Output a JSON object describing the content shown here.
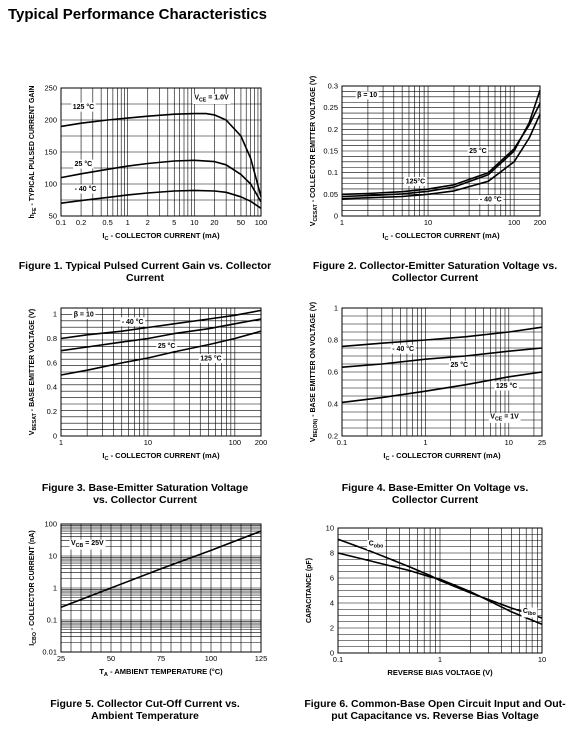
{
  "page_title": "Typical Performance Characteristics",
  "figures": [
    {
      "caption_lines": [
        "Figure 1. Typical Pulsed Current Gain vs. Collector",
        "Current"
      ]
    },
    {
      "caption_lines": [
        "Figure 2. Collector-Emitter Saturation Voltage vs.",
        "Collector Current"
      ]
    },
    {
      "caption_lines": [
        "Figure 3. Base-Emitter Saturation Voltage",
        "vs. Collector Current"
      ]
    },
    {
      "caption_lines": [
        "Figure 4. Base-Emitter On Voltage vs.",
        "Collector Current"
      ]
    },
    {
      "caption_lines": [
        "Figure 5. Collector Cut-Off Current vs.",
        "Ambient Temperature"
      ]
    },
    {
      "caption_lines": [
        "Figure 6. Common-Base Open Circuit Input and Out-",
        "put Capacitance vs. Reverse Bias Voltage"
      ]
    }
  ],
  "chart_data": [
    {
      "type": "line",
      "xscale": "log",
      "xlim": [
        0.1,
        100
      ],
      "xticks": [
        "0.1",
        "0.2",
        "0.5",
        "1",
        "2",
        "5",
        "10",
        "20",
        "50",
        "100"
      ],
      "yscale": "linear",
      "ylim": [
        50,
        250
      ],
      "yticks": [
        "50",
        "100",
        "150",
        "200",
        "250"
      ],
      "xlabel": "I C - COLLECTOR CURRENT (mA)",
      "ylabel": "h FE - TYPICAL PULSED CURRENT GAIN",
      "annotations": [
        {
          "text": "V CE = 1.0V",
          "x": 10,
          "y": 232
        },
        {
          "text": "125 °C",
          "x": 0.15,
          "y": 217
        },
        {
          "text": "25 °C",
          "x": 0.16,
          "y": 128
        },
        {
          "text": "- 40 °C",
          "x": 0.16,
          "y": 89
        }
      ],
      "series": [
        {
          "label": "125 °C",
          "x": [
            0.1,
            0.2,
            0.5,
            1,
            2,
            5,
            10,
            15,
            20,
            30,
            50,
            70,
            100
          ],
          "y": [
            190,
            195,
            200,
            203,
            206,
            209,
            210,
            210,
            208,
            200,
            175,
            140,
            80
          ]
        },
        {
          "label": "25 °C",
          "x": [
            0.1,
            0.2,
            0.5,
            1,
            2,
            5,
            10,
            20,
            30,
            50,
            70,
            100
          ],
          "y": [
            110,
            116,
            123,
            128,
            132,
            136,
            137,
            135,
            130,
            115,
            100,
            72
          ]
        },
        {
          "label": "- 40 °C",
          "x": [
            0.1,
            0.2,
            0.5,
            1,
            2,
            5,
            10,
            20,
            30,
            50,
            70,
            100
          ],
          "y": [
            70,
            74,
            79,
            83,
            86,
            89,
            90,
            89,
            87,
            80,
            73,
            62
          ]
        }
      ]
    },
    {
      "type": "line",
      "xscale": "log",
      "xlim": [
        1,
        200
      ],
      "xticks": [
        "1",
        "10",
        "100",
        "200"
      ],
      "yscale": "linear",
      "ylim": [
        0,
        0.3
      ],
      "yticks": [
        "0",
        "0.05",
        "0.1",
        "0.15",
        "0.2",
        "0.25",
        "0.3"
      ],
      "xlabel": "I C - COLLECTOR CURRENT (mA)",
      "ylabel": "V CESAT - COLLECTOR EMITTER VOLTAGE (V)",
      "annotations": [
        {
          "text": "β = 10",
          "x": 1.5,
          "y": 0.275
        },
        {
          "text": "25 °C",
          "x": 30,
          "y": 0.145
        },
        {
          "text": "125°C",
          "x": 5.5,
          "y": 0.075
        },
        {
          "text": "- 40 °C",
          "x": 40,
          "y": 0.033
        }
      ],
      "series": [
        {
          "label": "125°C",
          "x": [
            1,
            2,
            5,
            10,
            20,
            50,
            100,
            150,
            200
          ],
          "y": [
            0.05,
            0.052,
            0.056,
            0.062,
            0.072,
            0.1,
            0.155,
            0.21,
            0.26
          ]
        },
        {
          "label": "25 °C",
          "x": [
            1,
            2,
            5,
            10,
            20,
            50,
            100,
            150,
            200
          ],
          "y": [
            0.045,
            0.047,
            0.051,
            0.057,
            0.067,
            0.095,
            0.15,
            0.215,
            0.29
          ]
        },
        {
          "label": "- 40 °C",
          "x": [
            1,
            2,
            5,
            10,
            20,
            50,
            100,
            150,
            200
          ],
          "y": [
            0.04,
            0.042,
            0.045,
            0.05,
            0.058,
            0.08,
            0.125,
            0.18,
            0.235
          ]
        }
      ]
    },
    {
      "type": "line",
      "xscale": "log",
      "xlim": [
        1,
        200
      ],
      "xticks": [
        "1",
        "10",
        "100",
        "200"
      ],
      "yscale": "linear",
      "ylim": [
        0,
        1.05
      ],
      "yticks": [
        "0",
        "0.2",
        "0.4",
        "0.6",
        "0.8",
        "1"
      ],
      "xlabel": "I C - COLLECTOR CURRENT (mA)",
      "ylabel": "V BESAT - BASE EMITTER VOLTAGE (V)",
      "annotations": [
        {
          "text": "β = 10",
          "x": 1.4,
          "y": 0.98
        },
        {
          "text": "- 40 °C",
          "x": 5,
          "y": 0.92
        },
        {
          "text": "25 °C",
          "x": 13,
          "y": 0.72
        },
        {
          "text": "125 °C",
          "x": 40,
          "y": 0.62
        }
      ],
      "series": [
        {
          "label": "- 40 °C",
          "x": [
            1,
            2,
            5,
            10,
            20,
            50,
            100,
            200
          ],
          "y": [
            0.8,
            0.83,
            0.86,
            0.89,
            0.92,
            0.96,
            0.99,
            1.03
          ]
        },
        {
          "label": "25 °C",
          "x": [
            1,
            2,
            5,
            10,
            20,
            50,
            100,
            200
          ],
          "y": [
            0.7,
            0.73,
            0.77,
            0.8,
            0.84,
            0.88,
            0.92,
            0.96
          ]
        },
        {
          "label": "125 °C",
          "x": [
            1,
            2,
            5,
            10,
            20,
            50,
            100,
            200
          ],
          "y": [
            0.5,
            0.54,
            0.6,
            0.64,
            0.69,
            0.75,
            0.8,
            0.86
          ]
        }
      ]
    },
    {
      "type": "line",
      "xscale": "log",
      "xlim": [
        0.1,
        25
      ],
      "xticks": [
        "0.1",
        "1",
        "10",
        "25"
      ],
      "yscale": "linear",
      "ylim": [
        0.2,
        1
      ],
      "yticks": [
        "0.2",
        "0.4",
        "0.6",
        "0.8",
        "1"
      ],
      "xlabel": "I C - COLLECTOR CURRENT (mA)",
      "ylabel": "V BE(ON) - BASE EMITTER ON VOLTAGE (V)",
      "annotations": [
        {
          "text": "- 40 °C",
          "x": 0.4,
          "y": 0.73
        },
        {
          "text": "25 °C",
          "x": 2,
          "y": 0.63
        },
        {
          "text": "125 °C",
          "x": 7,
          "y": 0.5
        },
        {
          "text": "V CE = 1V",
          "x": 6,
          "y": 0.31
        }
      ],
      "series": [
        {
          "label": "- 40 °C",
          "x": [
            0.1,
            0.3,
            1,
            3,
            10,
            25
          ],
          "y": [
            0.76,
            0.78,
            0.8,
            0.82,
            0.85,
            0.88
          ]
        },
        {
          "label": "25 °C",
          "x": [
            0.1,
            0.3,
            1,
            3,
            10,
            25
          ],
          "y": [
            0.63,
            0.65,
            0.68,
            0.7,
            0.73,
            0.75
          ]
        },
        {
          "label": "125 °C",
          "x": [
            0.1,
            0.3,
            1,
            3,
            10,
            25
          ],
          "y": [
            0.41,
            0.44,
            0.48,
            0.52,
            0.57,
            0.6
          ]
        }
      ]
    },
    {
      "type": "line",
      "xscale": "linear",
      "xlim": [
        25,
        125
      ],
      "xticks": [
        "25",
        "50",
        "75",
        "100",
        "125"
      ],
      "yscale": "log",
      "ylim": [
        0.01,
        100
      ],
      "yticks": [
        "0.01",
        "0.1",
        "1",
        "10",
        "100"
      ],
      "xlabel": "T A - AMBIENT TEMPERATURE (°C)",
      "ylabel": "I CBO - COLLECTOR CURRENT (nA)",
      "annotations": [
        {
          "text": "V CB = 25V",
          "x": 30,
          "y": 22
        }
      ],
      "series": [
        {
          "label": "V CB = 25V",
          "x": [
            25,
            50,
            75,
            100,
            125
          ],
          "y": [
            0.25,
            1,
            4,
            15,
            60
          ]
        }
      ]
    },
    {
      "type": "line",
      "xscale": "log",
      "xlim": [
        0.1,
        10
      ],
      "xticks": [
        "0.1",
        "1",
        "10"
      ],
      "yscale": "linear",
      "ylim": [
        0,
        10
      ],
      "yticks": [
        "0",
        "2",
        "4",
        "6",
        "8",
        "10"
      ],
      "xlabel": "REVERSE BIAS VOLTAGE (V)",
      "ylabel": "CAPACITANCE (pF)",
      "annotations": [
        {
          "text": "C obo",
          "x": 0.2,
          "y": 8.6
        },
        {
          "text": "C ibo",
          "x": 6.5,
          "y": 3.2
        }
      ],
      "series": [
        {
          "label": "C obo",
          "x": [
            0.1,
            0.2,
            0.5,
            0.8,
            1,
            2,
            5,
            10
          ],
          "y": [
            9.1,
            8.2,
            6.9,
            6.2,
            5.8,
            4.8,
            3.6,
            2.8
          ]
        },
        {
          "label": "C ibo",
          "x": [
            0.1,
            0.2,
            0.5,
            0.8,
            1,
            2,
            5,
            10
          ],
          "y": [
            8.0,
            7.4,
            6.6,
            6.1,
            5.9,
            4.9,
            3.3,
            2.3
          ]
        }
      ]
    }
  ]
}
